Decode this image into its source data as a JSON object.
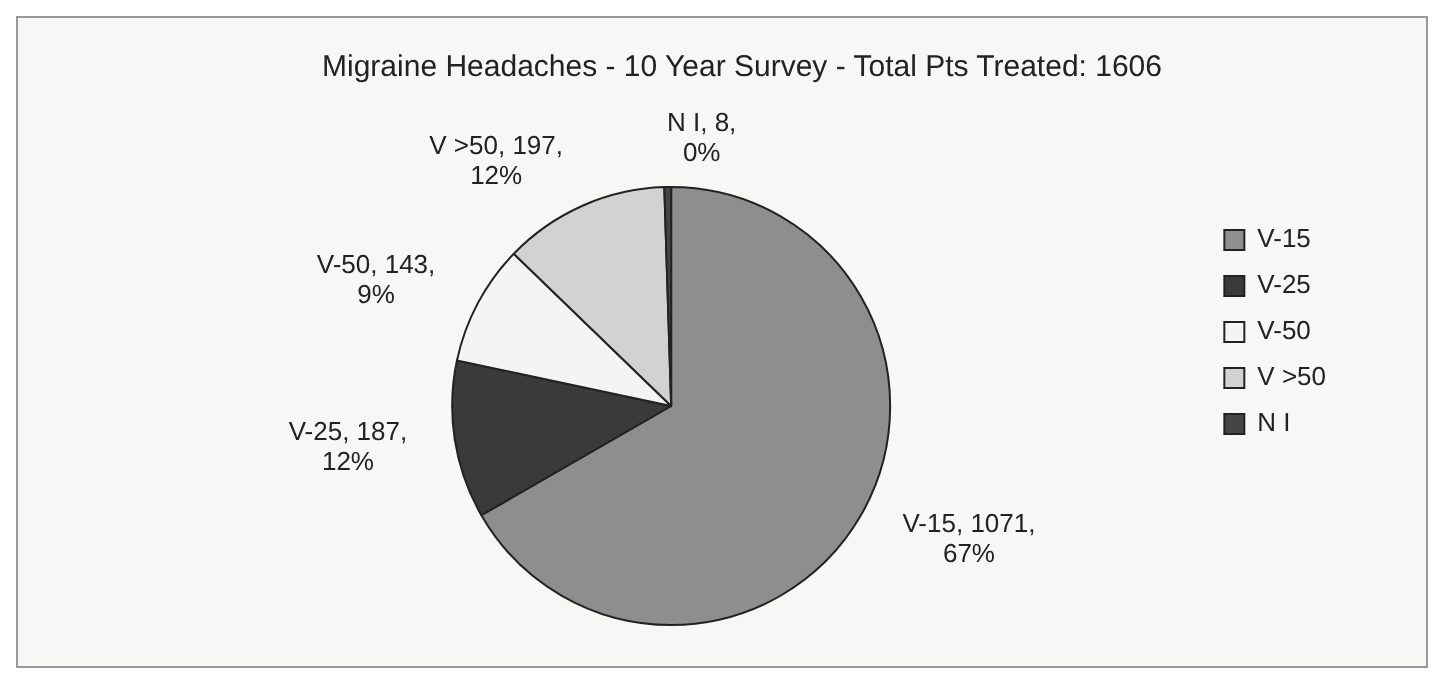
{
  "chart_data": {
    "type": "pie",
    "title": "Migraine Headaches - 10 Year Survey - Total Pts Treated: 1606",
    "categories": [
      "V-15",
      "V-25",
      "V-50",
      "V >50",
      "N I"
    ],
    "values": [
      1071,
      187,
      143,
      197,
      8
    ],
    "colors": [
      "#8e8e8e",
      "#3a3a3a",
      "#f4f4f4",
      "#d2d2d2",
      "#454545"
    ],
    "value_labels": [
      "V-15, 1071, 67%",
      "V-25, 187, 12%",
      "V-50, 143, 9%",
      "V >50, 197, 12%",
      "N I, 8, 0%"
    ],
    "legend": "right"
  }
}
